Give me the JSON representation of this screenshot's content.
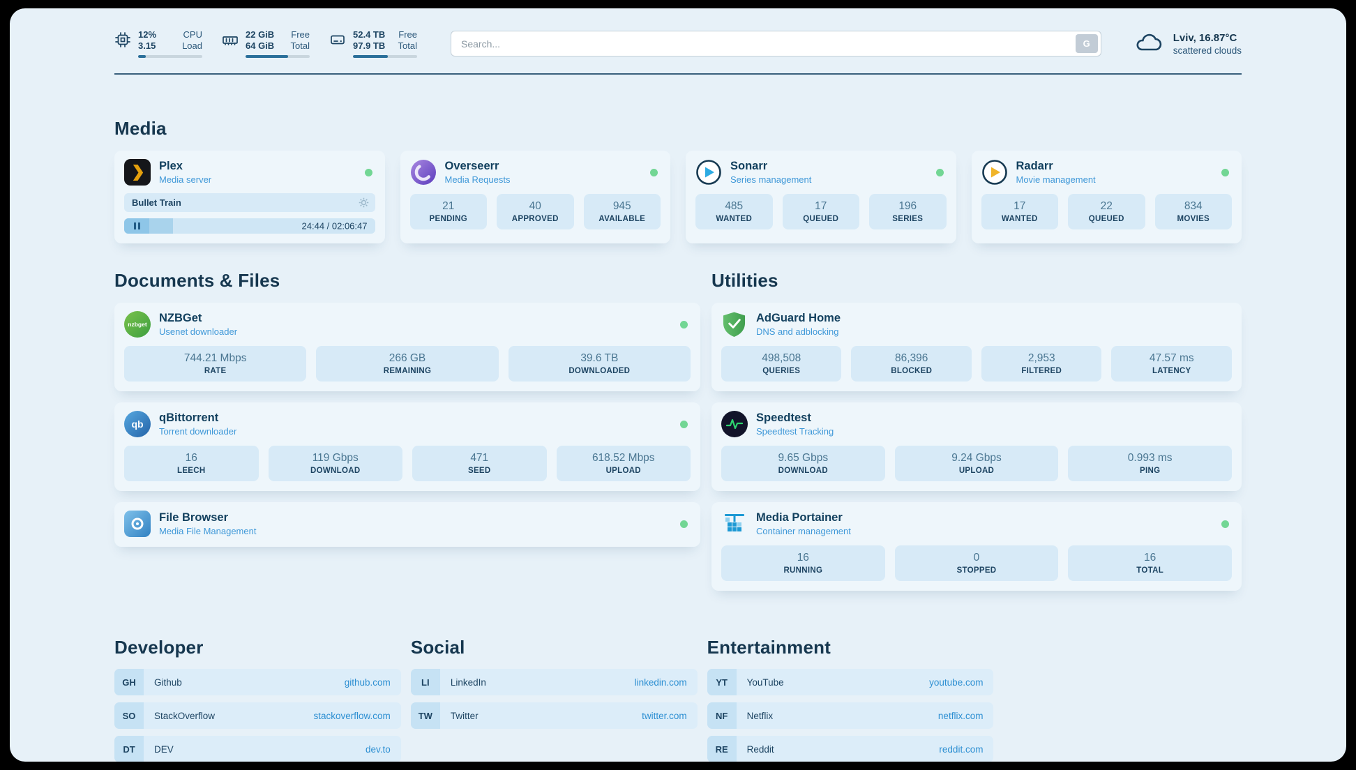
{
  "colors": {
    "background": "#e7f1f8",
    "accent_blue": "#3f98d8",
    "status_green": "#72d694",
    "text_dark": "#16374f"
  },
  "header": {
    "cpu": {
      "value_top": "12%",
      "value_bottom": "3.15",
      "label_top": "CPU",
      "label_bottom": "Load",
      "percent": 12
    },
    "ram": {
      "value_top": "22 GiB",
      "value_bottom": "64 GiB",
      "label_top": "Free",
      "label_bottom": "Total",
      "percent": 66
    },
    "disk": {
      "value_top": "52.4 TB",
      "value_bottom": "97.9 TB",
      "label_top": "Free",
      "label_bottom": "Total",
      "percent": 54
    },
    "search": {
      "placeholder": "Search...",
      "button_label": "G"
    },
    "weather": {
      "location": "Lviv, 16.87°C",
      "condition": "scattered clouds"
    }
  },
  "media": {
    "title": "Media",
    "plex": {
      "name": "Plex",
      "subtitle": "Media server",
      "now_playing": "Bullet Train",
      "time": "24:44 / 02:06:47",
      "progress_percent": 19.5
    },
    "overseerr": {
      "name": "Overseerr",
      "subtitle": "Media Requests",
      "stats": [
        {
          "value": "21",
          "label": "PENDING"
        },
        {
          "value": "40",
          "label": "APPROVED"
        },
        {
          "value": "945",
          "label": "AVAILABLE"
        }
      ]
    },
    "sonarr": {
      "name": "Sonarr",
      "subtitle": "Series management",
      "stats": [
        {
          "value": "485",
          "label": "WANTED"
        },
        {
          "value": "17",
          "label": "QUEUED"
        },
        {
          "value": "196",
          "label": "SERIES"
        }
      ]
    },
    "radarr": {
      "name": "Radarr",
      "subtitle": "Movie management",
      "stats": [
        {
          "value": "17",
          "label": "WANTED"
        },
        {
          "value": "22",
          "label": "QUEUED"
        },
        {
          "value": "834",
          "label": "MOVIES"
        }
      ]
    }
  },
  "documents": {
    "title": "Documents & Files",
    "nzbget": {
      "name": "NZBGet",
      "subtitle": "Usenet downloader",
      "icon_text": "nzbget",
      "stats": [
        {
          "value": "744.21 Mbps",
          "label": "RATE"
        },
        {
          "value": "266 GB",
          "label": "REMAINING"
        },
        {
          "value": "39.6 TB",
          "label": "DOWNLOADED"
        }
      ]
    },
    "qbittorrent": {
      "name": "qBittorrent",
      "subtitle": "Torrent downloader",
      "icon_text": "qb",
      "stats": [
        {
          "value": "16",
          "label": "LEECH"
        },
        {
          "value": "119 Gbps",
          "label": "DOWNLOAD"
        },
        {
          "value": "471",
          "label": "SEED"
        },
        {
          "value": "618.52 Mbps",
          "label": "UPLOAD"
        }
      ]
    },
    "filebrowser": {
      "name": "File Browser",
      "subtitle": "Media File Management"
    }
  },
  "utilities": {
    "title": "Utilities",
    "adguard": {
      "name": "AdGuard Home",
      "subtitle": "DNS and adblocking",
      "stats": [
        {
          "value": "498,508",
          "label": "QUERIES"
        },
        {
          "value": "86,396",
          "label": "BLOCKED"
        },
        {
          "value": "2,953",
          "label": "FILTERED"
        },
        {
          "value": "47.57 ms",
          "label": "LATENCY"
        }
      ]
    },
    "speedtest": {
      "name": "Speedtest",
      "subtitle": "Speedtest Tracking",
      "stats": [
        {
          "value": "9.65 Gbps",
          "label": "DOWNLOAD"
        },
        {
          "value": "9.24 Gbps",
          "label": "UPLOAD"
        },
        {
          "value": "0.993 ms",
          "label": "PING"
        }
      ]
    },
    "portainer": {
      "name": "Media Portainer",
      "subtitle": "Container management",
      "stats": [
        {
          "value": "16",
          "label": "RUNNING"
        },
        {
          "value": "0",
          "label": "STOPPED"
        },
        {
          "value": "16",
          "label": "TOTAL"
        }
      ]
    }
  },
  "bookmarks": {
    "developer": {
      "title": "Developer",
      "items": [
        {
          "abbr": "GH",
          "name": "Github",
          "url": "github.com"
        },
        {
          "abbr": "SO",
          "name": "StackOverflow",
          "url": "stackoverflow.com"
        },
        {
          "abbr": "DT",
          "name": "DEV",
          "url": "dev.to"
        }
      ]
    },
    "social": {
      "title": "Social",
      "items": [
        {
          "abbr": "LI",
          "name": "LinkedIn",
          "url": "linkedin.com"
        },
        {
          "abbr": "TW",
          "name": "Twitter",
          "url": "twitter.com"
        }
      ]
    },
    "entertainment": {
      "title": "Entertainment",
      "items": [
        {
          "abbr": "YT",
          "name": "YouTube",
          "url": "youtube.com"
        },
        {
          "abbr": "NF",
          "name": "Netflix",
          "url": "netflix.com"
        },
        {
          "abbr": "RE",
          "name": "Reddit",
          "url": "reddit.com"
        }
      ]
    }
  }
}
